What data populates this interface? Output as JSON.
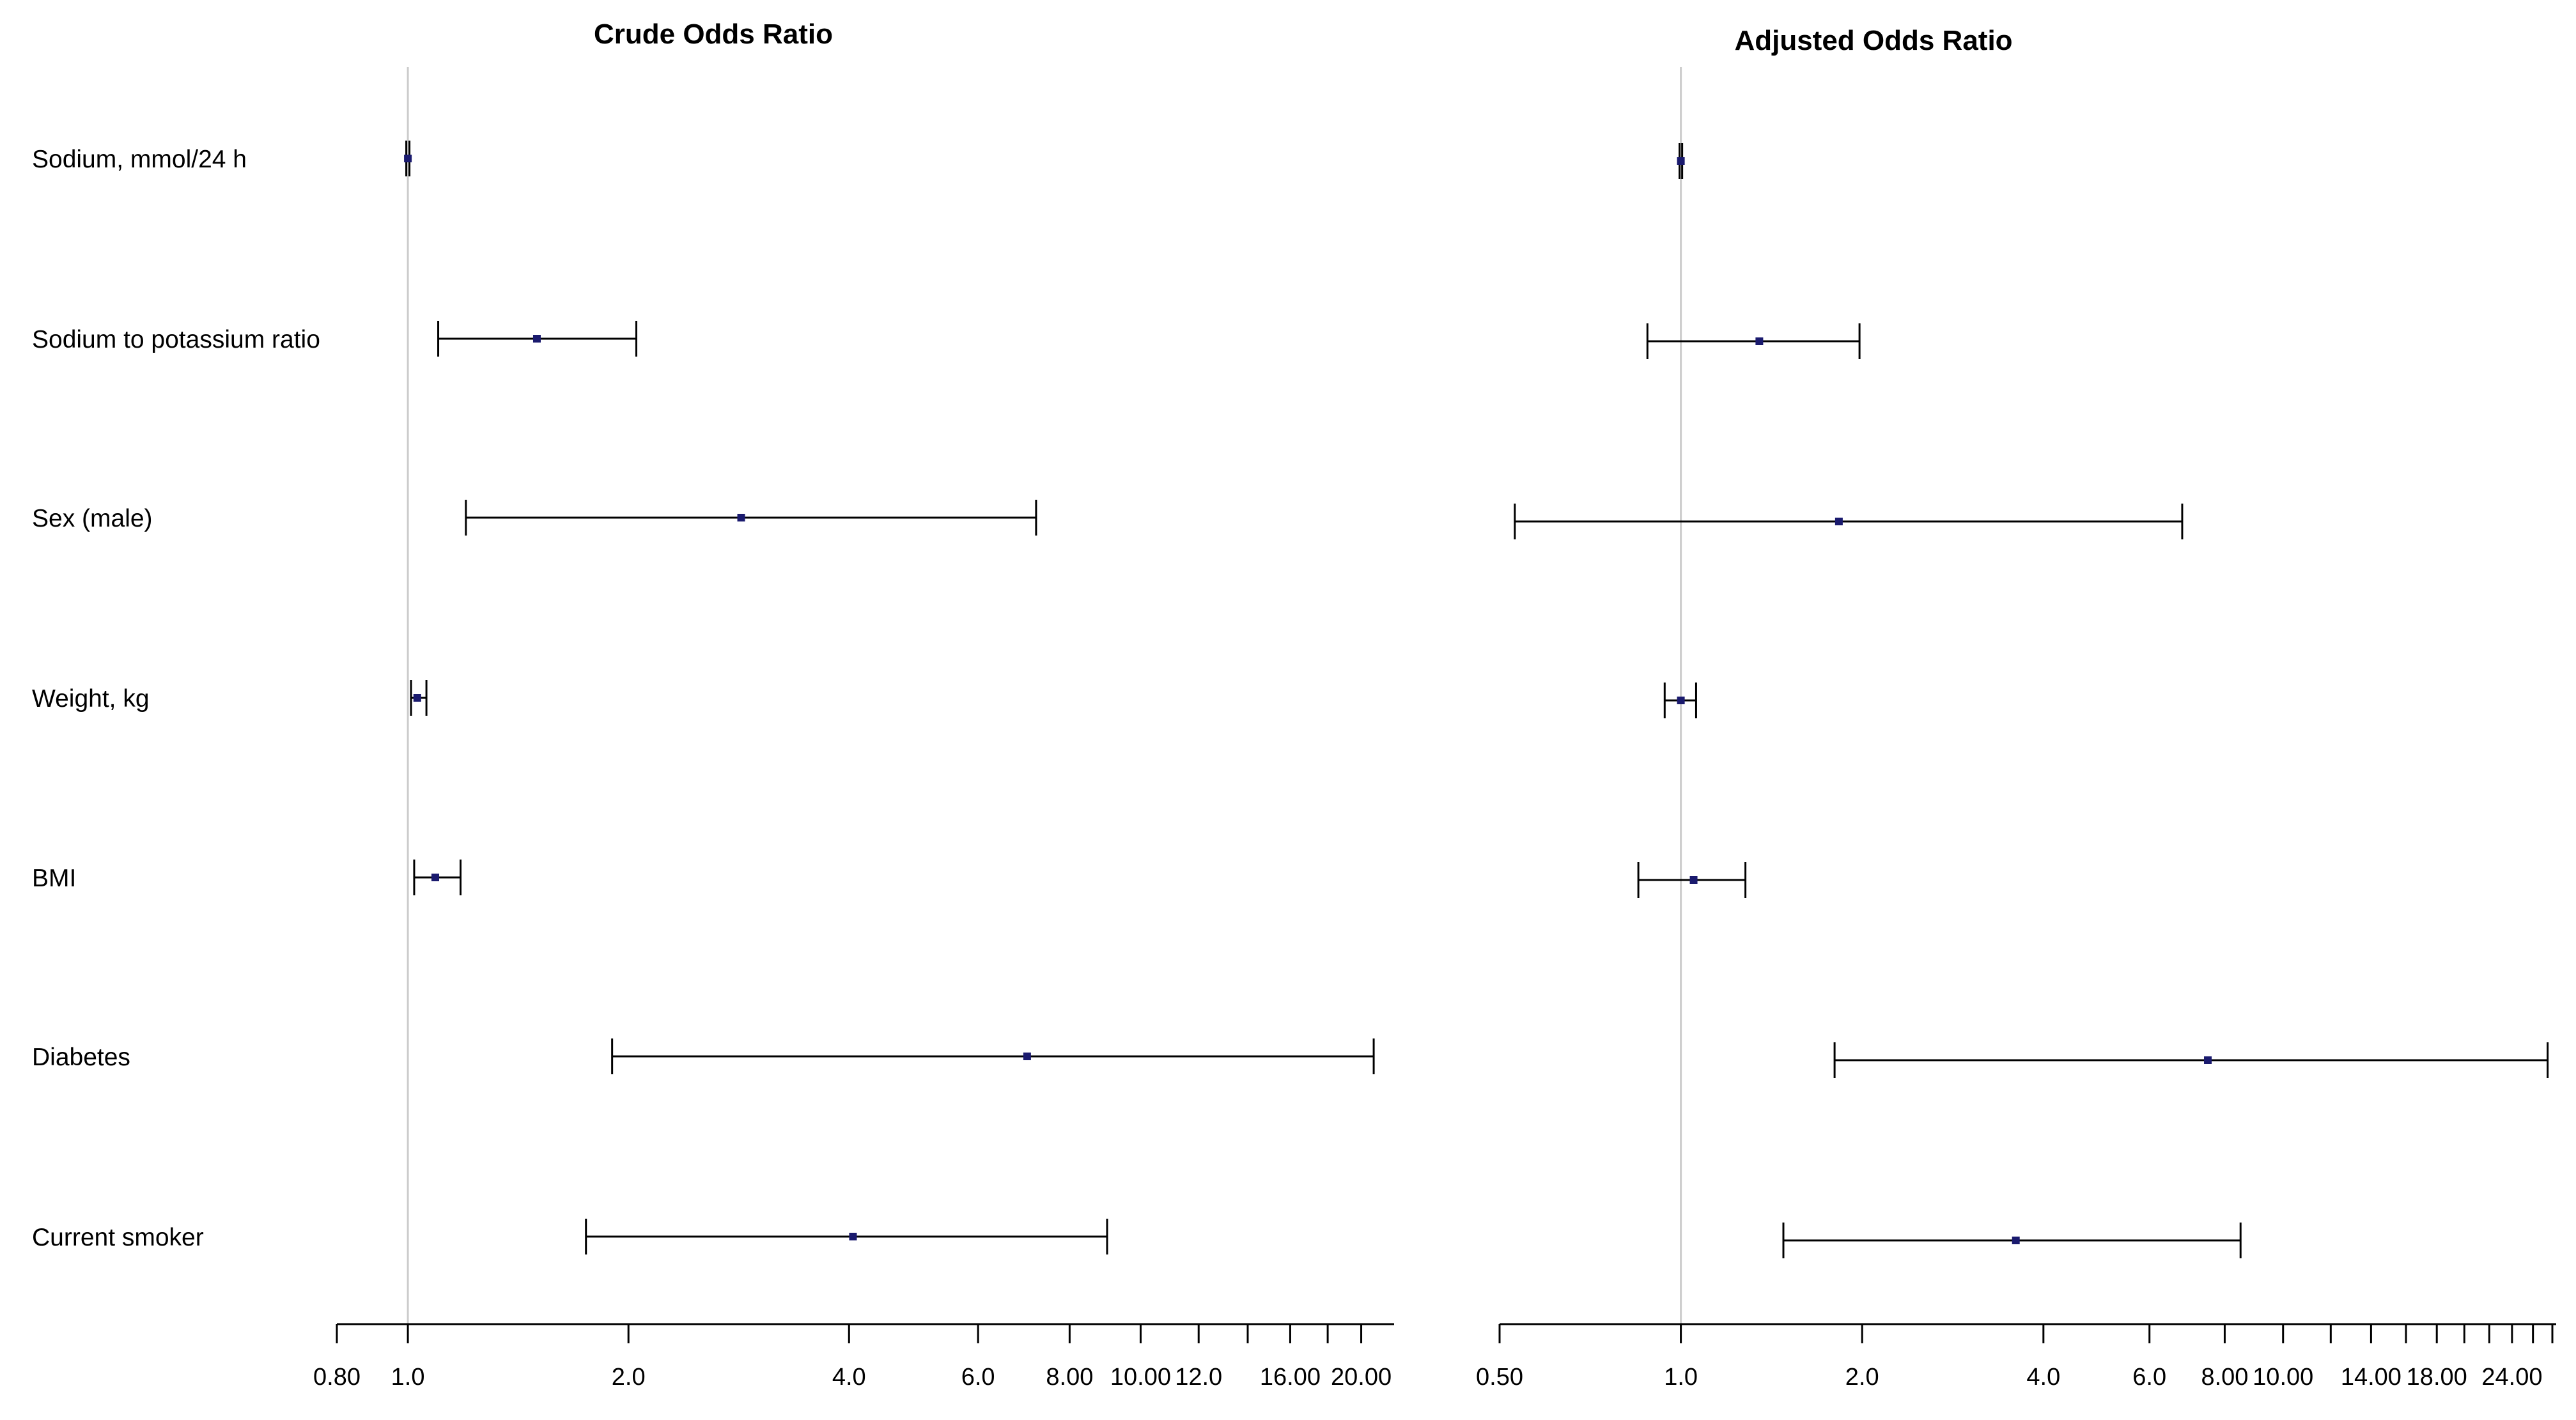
{
  "chart_data": [
    {
      "type": "forest",
      "title": "Crude Odds Ratio",
      "scale": "log",
      "xlim": [
        0.8,
        22.0
      ],
      "reference_line": 1.0,
      "tick_labels": [
        "0.80",
        "1.0",
        "2.0",
        "4.0",
        "6.0",
        "8.00",
        "10.00",
        "12.0",
        "16.00",
        "20.00"
      ],
      "tick_values": [
        0.8,
        1.0,
        2.0,
        4.0,
        6.0,
        8.0,
        10.0,
        12.0,
        16.0,
        20.0
      ],
      "minor_ticks": [
        14.0,
        18.0
      ],
      "rows": [
        {
          "label": "Sodium, mmol/24 h",
          "or": 1.0,
          "lo": 0.995,
          "hi": 1.005
        },
        {
          "label": "Sodium to potassium ratio",
          "or": 1.5,
          "lo": 1.1,
          "hi": 2.05
        },
        {
          "label": "Sex (male)",
          "or": 2.85,
          "lo": 1.2,
          "hi": 7.2
        },
        {
          "label": "Weight, kg",
          "or": 1.03,
          "lo": 1.01,
          "hi": 1.06
        },
        {
          "label": "BMI",
          "or": 1.09,
          "lo": 1.02,
          "hi": 1.18
        },
        {
          "label": "Diabetes",
          "or": 7.0,
          "lo": 1.9,
          "hi": 20.8
        },
        {
          "label": "Current smoker",
          "or": 4.05,
          "lo": 1.75,
          "hi": 9.0
        }
      ]
    },
    {
      "type": "forest",
      "title": "Adjusted Odds Ratio",
      "scale": "log",
      "xlim": [
        0.5,
        28.0
      ],
      "reference_line": 1.0,
      "tick_labels": [
        "0.50",
        "1.0",
        "2.0",
        "4.0",
        "6.0",
        "8.00",
        "10.00",
        "14.00",
        "18.00",
        "24.00"
      ],
      "tick_values": [
        0.5,
        1.0,
        2.0,
        4.0,
        6.0,
        8.0,
        10.0,
        14.0,
        18.0,
        24.0
      ],
      "minor_ticks": [
        12.0,
        16.0,
        20.0,
        22.0,
        26.0,
        28.0
      ],
      "rows": [
        {
          "label": "Sodium, mmol/24 h",
          "or": 1.0,
          "lo": 0.995,
          "hi": 1.005
        },
        {
          "label": "Sodium to potassium ratio",
          "or": 1.35,
          "lo": 0.88,
          "hi": 1.98
        },
        {
          "label": "Sex (male)",
          "or": 1.83,
          "lo": 0.53,
          "hi": 6.8
        },
        {
          "label": "Weight, kg",
          "or": 1.0,
          "lo": 0.94,
          "hi": 1.06
        },
        {
          "label": "BMI",
          "or": 1.05,
          "lo": 0.85,
          "hi": 1.28
        },
        {
          "label": "Diabetes",
          "or": 7.5,
          "lo": 1.8,
          "hi": 27.5
        },
        {
          "label": "Current smoker",
          "or": 3.6,
          "lo": 1.48,
          "hi": 8.5
        }
      ]
    }
  ],
  "colors": {
    "point": "#1a1a6e",
    "whisker": "#000000",
    "reference": "#cccccc",
    "axis": "#000000"
  }
}
